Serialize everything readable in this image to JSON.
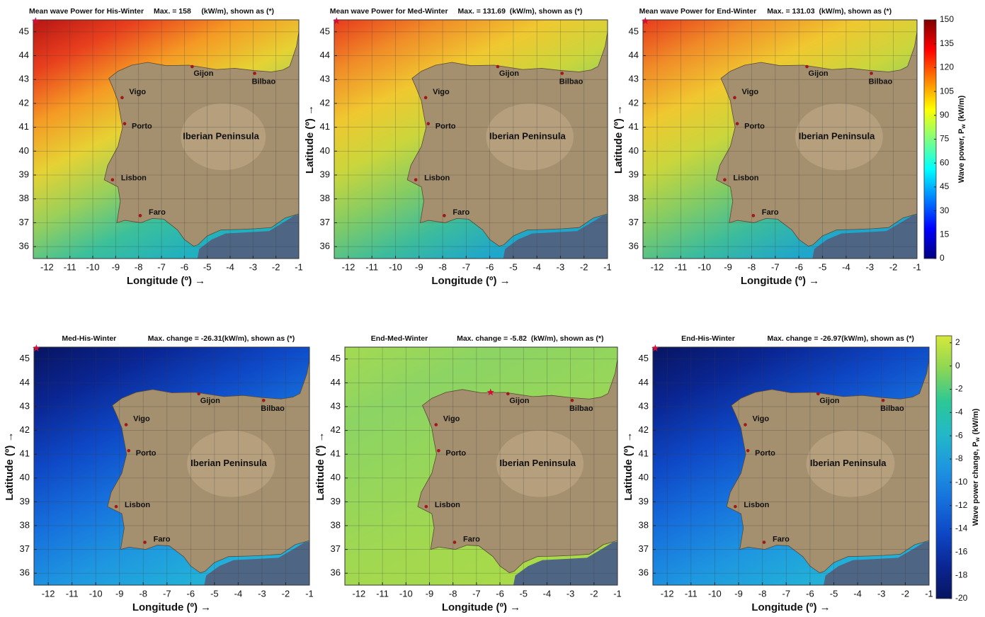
{
  "panels": [
    {
      "title": "Mean wave Power for His-Winter",
      "max_text": "Max. = 158     (kW/m), shown as (*)",
      "xlabel": "Longitude (º) →",
      "xlim": [
        -12.6,
        -1
      ],
      "ylim": [
        35.5,
        45.5
      ],
      "xticks": [
        -12,
        -11,
        -10,
        -9,
        -8,
        -7,
        -6,
        -5,
        -4,
        -3,
        -2,
        -1
      ],
      "yticks": [
        36,
        37,
        38,
        39,
        40,
        41,
        42,
        43,
        44,
        45
      ],
      "max_location": [
        -12.5,
        45.45
      ],
      "sea_colors": [
        "#b81414",
        "#e8401e",
        "#f59a24",
        "#e6d234",
        "#9ad05a",
        "#3cc09a",
        "#20b0c0"
      ]
    },
    {
      "title": "Mean wave Power for Med-Winter",
      "max_text": "Max. = 131.69  (kW/m), shown as (*)",
      "xlabel": "Longitude (º) →",
      "ylabel": "Latitude (º) →",
      "xlim": [
        -12.6,
        -1
      ],
      "ylim": [
        35.5,
        45.5
      ],
      "xticks": [
        -12,
        -11,
        -10,
        -9,
        -8,
        -7,
        -6,
        -5,
        -4,
        -3,
        -2,
        -1
      ],
      "yticks": [
        36,
        37,
        38,
        39,
        40,
        41,
        42,
        43,
        44,
        45
      ],
      "max_location": [
        -12.5,
        45.45
      ],
      "sea_colors": [
        "#e83a1c",
        "#f08c28",
        "#f0c830",
        "#cad63c",
        "#84cc64",
        "#3cbc9c",
        "#1ea6cc"
      ]
    },
    {
      "title": "Mean wave Power for End-Winter",
      "max_text": "Max. = 131.03  (kW/m), shown as (*)",
      "xlabel": "Longitude (º) →",
      "ylabel": "Latitude (º) →",
      "xlim": [
        -12.6,
        -1
      ],
      "ylim": [
        35.5,
        45.5
      ],
      "xticks": [
        -12,
        -11,
        -10,
        -9,
        -8,
        -7,
        -6,
        -5,
        -4,
        -3,
        -2,
        -1
      ],
      "yticks": [
        36,
        37,
        38,
        39,
        40,
        41,
        42,
        43,
        44,
        45
      ],
      "max_location": [
        -12.5,
        45.45
      ],
      "sea_colors": [
        "#e83a1c",
        "#f08c28",
        "#f0c830",
        "#cad63c",
        "#84cc64",
        "#3cbc9c",
        "#1ea6cc"
      ]
    },
    {
      "title": "Med-His-Winter",
      "max_text": "Max. change = -26.31(kW/m), shown as (*)",
      "xlabel": "Longitude (º) →",
      "ylabel": "Latitude (º) →",
      "xlim": [
        -12.6,
        -1
      ],
      "ylim": [
        35.5,
        45.5
      ],
      "xticks": [
        -12,
        -11,
        -10,
        -9,
        -8,
        -7,
        -6,
        -5,
        -4,
        -3,
        -2,
        -1
      ],
      "yticks": [
        36,
        37,
        38,
        39,
        40,
        41,
        42,
        43,
        44,
        45
      ],
      "max_location": [
        -12.5,
        45.45
      ],
      "sea_colors": [
        "#081460",
        "#0a2694",
        "#0e48c6",
        "#1670dc",
        "#1e96e0",
        "#22b0d8"
      ]
    },
    {
      "title": "End-Med-Winter",
      "max_text": "Max. change = -5.82  (kW/m), shown as (*)",
      "xlabel": "Longitude (º) →",
      "ylabel": "Latitude (º) →",
      "xlim": [
        -12.6,
        -1
      ],
      "ylim": [
        35.5,
        45.5
      ],
      "xticks": [
        -12,
        -11,
        -10,
        -9,
        -8,
        -7,
        -6,
        -5,
        -4,
        -3,
        -2,
        -1
      ],
      "yticks": [
        36,
        37,
        38,
        39,
        40,
        41,
        42,
        43,
        44,
        45
      ],
      "max_location": [
        -6.4,
        43.6
      ],
      "sea_colors": [
        "#a4da52",
        "#8cd464",
        "#96d65a",
        "#a2d850",
        "#a8da4a"
      ]
    },
    {
      "title": "End-His-Winter",
      "max_text": "Max. change = -26.97(kW/m), shown as (*)",
      "xlabel": "Longitude (º) →",
      "ylabel": "Latitude (º) →",
      "xlim": [
        -12.6,
        -1
      ],
      "ylim": [
        35.5,
        45.5
      ],
      "xticks": [
        -12,
        -11,
        -10,
        -9,
        -8,
        -7,
        -6,
        -5,
        -4,
        -3,
        -2,
        -1
      ],
      "yticks": [
        36,
        37,
        38,
        39,
        40,
        41,
        42,
        43,
        44,
        45
      ],
      "max_location": [
        -12.5,
        45.45
      ],
      "sea_colors": [
        "#081460",
        "#0a2694",
        "#0e48c6",
        "#1670dc",
        "#1e96e0",
        "#22b0d8"
      ]
    }
  ],
  "cities": [
    {
      "name": "Gijon",
      "lon": -5.66,
      "lat": 43.54
    },
    {
      "name": "Bilbao",
      "lon": -2.93,
      "lat": 43.26
    },
    {
      "name": "Vigo",
      "lon": -8.72,
      "lat": 42.24
    },
    {
      "name": "Porto",
      "lon": -8.61,
      "lat": 41.15
    },
    {
      "name": "Lisbon",
      "lon": -9.14,
      "lat": 38.8
    },
    {
      "name": "Faro",
      "lon": -7.93,
      "lat": 37.3
    }
  ],
  "region_label": "Iberian Peninsula",
  "colorbars": [
    {
      "label_main": "Wave power, P",
      "label_sub": "w",
      "label_unit": "(kW/m)",
      "lim": [
        0,
        150
      ],
      "ticks": [
        0,
        15,
        30,
        45,
        60,
        75,
        90,
        105,
        120,
        135,
        150
      ],
      "colors": [
        "#00007f",
        "#0000ff",
        "#007fff",
        "#00ffff",
        "#7fff7f",
        "#ffff00",
        "#ff7f00",
        "#ff0000",
        "#7f0000"
      ]
    },
    {
      "label_main": "Wave power change, P",
      "label_sub": "w",
      "label_unit": "(kW/m)",
      "lim": [
        -20,
        2.6
      ],
      "ticks": [
        -20,
        -18,
        -16,
        -14,
        -12,
        -10,
        -8,
        -6,
        -4,
        -2,
        0,
        2
      ],
      "colors": [
        "#081460",
        "#0a2694",
        "#0e48c6",
        "#1670dc",
        "#1e96e0",
        "#22b8c8",
        "#2cc896",
        "#8cd654",
        "#d6e83a"
      ]
    }
  ]
}
